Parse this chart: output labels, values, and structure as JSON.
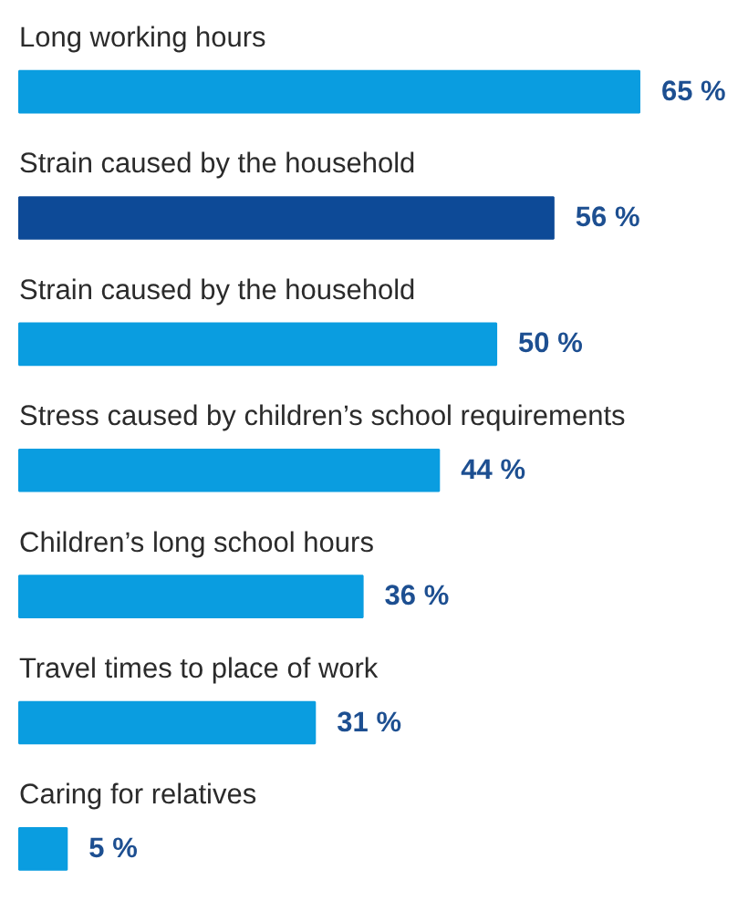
{
  "chart_data": {
    "type": "bar",
    "orientation": "horizontal",
    "categories": [
      "Long working hours",
      "Strain caused by the household",
      "Strain caused by the household",
      "Stress caused by children’s school requirements",
      "Children’s long school hours",
      "Travel times to place of work",
      "Caring for relatives"
    ],
    "values": [
      65,
      56,
      50,
      44,
      36,
      31,
      5
    ],
    "colors": [
      "#0a9de0",
      "#0d4a97",
      "#0a9de0",
      "#0a9de0",
      "#0a9de0",
      "#0a9de0",
      "#0a9de0"
    ],
    "value_labels": [
      "65 %",
      "56 %",
      "50 %",
      "44 %",
      "36 %",
      "31 %",
      "5 %"
    ]
  }
}
